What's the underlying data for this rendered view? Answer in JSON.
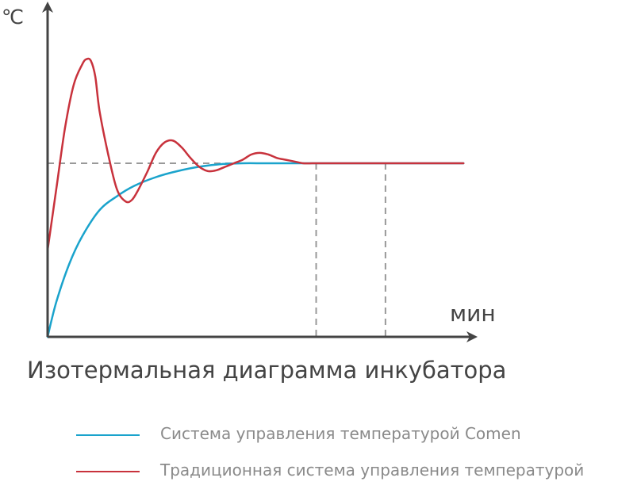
{
  "chart_data": {
    "type": "line",
    "title": "Изотермальная диаграмма инкубатора",
    "ylabel": "℃",
    "xlabel": "мин",
    "setpoint": 1.0,
    "xlim": [
      0,
      100
    ],
    "ylim": [
      0,
      2
    ],
    "vlines": [
      62,
      78
    ],
    "grid": false,
    "legend_position": "bottom",
    "series": [
      {
        "name": "Система управления температурой Comen",
        "color": "#1aa3cc",
        "x": [
          0,
          2,
          5,
          8,
          12,
          16,
          20,
          25,
          30,
          35,
          40,
          45,
          50,
          55,
          60,
          65,
          70,
          75,
          80,
          85,
          90,
          96
        ],
        "y": [
          0.0,
          0.2,
          0.42,
          0.58,
          0.73,
          0.81,
          0.87,
          0.92,
          0.955,
          0.98,
          0.995,
          1.0,
          1.0,
          1.0,
          1.0,
          1.0,
          1.0,
          1.0,
          1.0,
          1.0,
          1.0,
          1.0
        ]
      },
      {
        "name": "Традиционная система управления температурой",
        "color": "#c8323c",
        "x": [
          0,
          2,
          4,
          6,
          8,
          9,
          10,
          11,
          12,
          14,
          16,
          18,
          19.5,
          21,
          23,
          25,
          27,
          29,
          31,
          33,
          35,
          37,
          39,
          41,
          43,
          45,
          47,
          49,
          51,
          53,
          55,
          57,
          59,
          61,
          62,
          65,
          70,
          75,
          80,
          85,
          90,
          96
        ],
        "y": [
          0.5,
          0.85,
          1.2,
          1.45,
          1.57,
          1.6,
          1.59,
          1.5,
          1.3,
          1.05,
          0.85,
          0.78,
          0.79,
          0.85,
          0.95,
          1.06,
          1.12,
          1.13,
          1.09,
          1.03,
          0.98,
          0.955,
          0.96,
          0.98,
          1.0,
          1.02,
          1.05,
          1.06,
          1.05,
          1.03,
          1.02,
          1.01,
          1.0,
          1.0,
          1.0,
          1.0,
          1.0,
          1.0,
          1.0,
          1.0,
          1.0,
          1.0
        ]
      }
    ],
    "colors": {
      "axis": "#444444",
      "dash": "#999999",
      "label": "#8a8a8a"
    }
  }
}
